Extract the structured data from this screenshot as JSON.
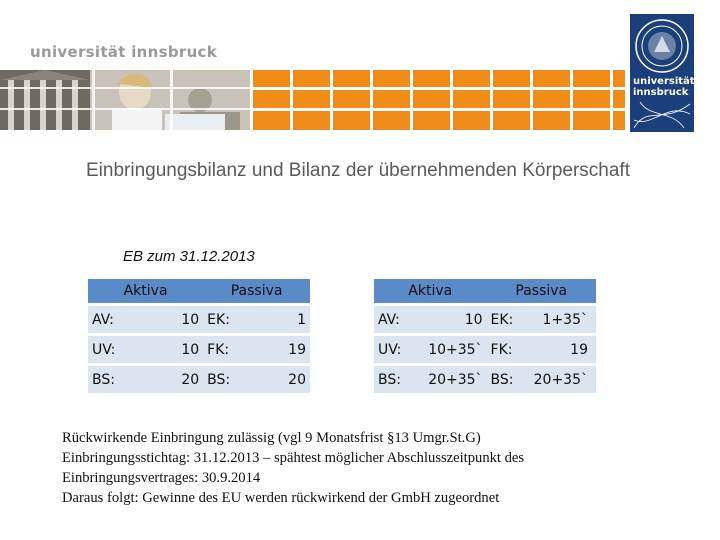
{
  "header": {
    "brand_text": "universität innsbruck",
    "logo_lines": [
      "universität",
      "innsbruck"
    ],
    "colors": {
      "banner": "#f08c1a",
      "logo_bg": "#1b3f7a",
      "table_header": "#5b8ac8",
      "table_cell": "#dbe4f1"
    }
  },
  "slide": {
    "title": "Einbringungsbilanz und Bilanz der übernehmenden Körperschaft",
    "subtitle": "EB zum 31.12.2013"
  },
  "balance_left": {
    "header_left": "Aktiva",
    "header_right": "Passiva",
    "rows": [
      {
        "a_label": "AV:",
        "a_value": "10",
        "p_label": "EK:",
        "p_value": "1"
      },
      {
        "a_label": "UV:",
        "a_value": "10",
        "p_label": "FK:",
        "p_value": "19"
      },
      {
        "a_label": "BS:",
        "a_value": "20",
        "p_label": "BS:",
        "p_value": "20"
      }
    ]
  },
  "balance_right": {
    "header_left": "Aktiva",
    "header_right": "Passiva",
    "rows": [
      {
        "a_label": "AV:",
        "a_value": "10",
        "p_label": "EK:",
        "p_value": "1+35`"
      },
      {
        "a_label": "UV:",
        "a_value": "10+35`",
        "p_label": "FK:",
        "p_value": "19"
      },
      {
        "a_label": "BS:",
        "a_value": "20+35`",
        "p_label": "BS:",
        "p_value": "20+35`"
      }
    ]
  },
  "notes": [
    "Rückwirkende Einbringung zulässig (vgl 9 Monatsfrist §13 Umgr.St.G)",
    "Einbringungsstichtag: 31.12.2013 – spähtest möglicher Abschlusszeitpunkt des",
    "Einbringungsvertrages: 30.9.2014",
    "Daraus folgt: Gewinne des EU werden rückwirkend der GmbH zugeordnet"
  ]
}
